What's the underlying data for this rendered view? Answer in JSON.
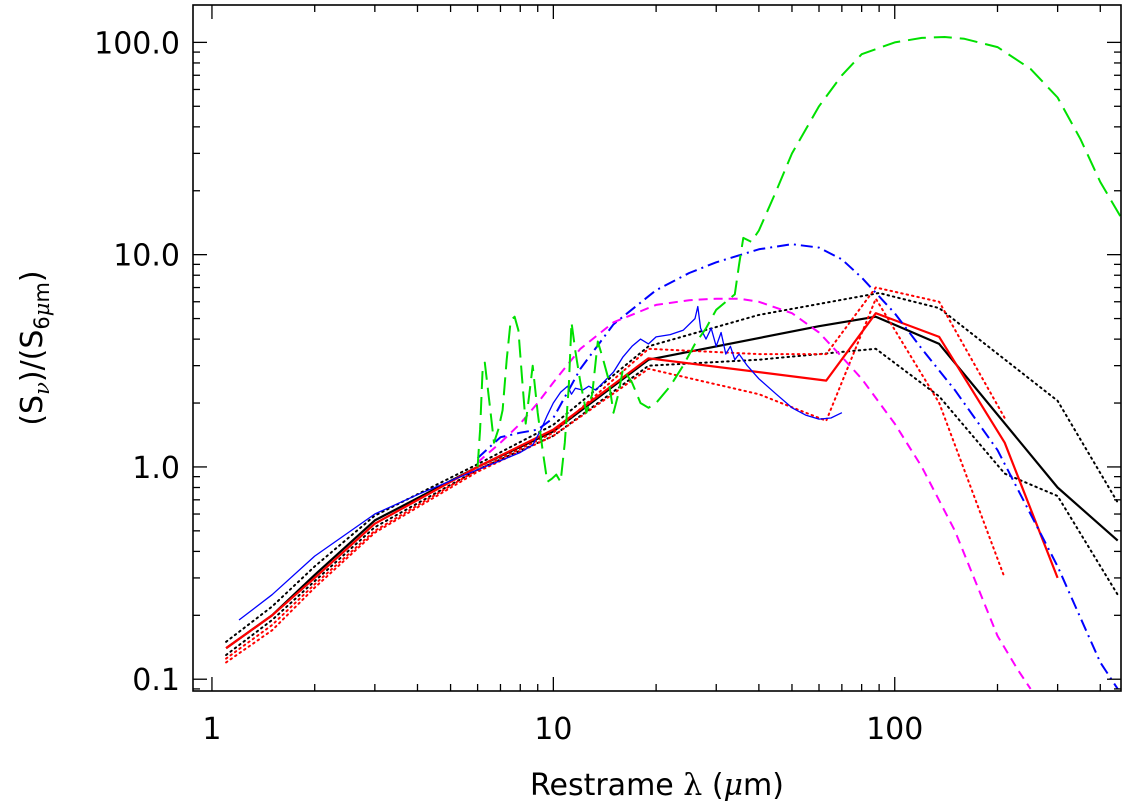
{
  "chart_data": {
    "type": "line",
    "title": "",
    "xlabel": "Restrame λ (μm)",
    "ylabel": "(S_ν)/(S_6μm)",
    "xlabel_parts": {
      "pre": "Restrame ",
      "greek": "λ",
      "post": " (",
      "mu": "μ",
      "unit": "m)"
    },
    "ylabel_parts": {
      "open": "(S",
      "sub1": "ν",
      "mid": ")/(S",
      "sub2a": "6",
      "sub2b": "μ",
      "sub2c": "m",
      "close": ")"
    },
    "xscale": "log",
    "yscale": "log",
    "xlim": [
      0.88,
      460
    ],
    "ylim": [
      0.088,
      150
    ],
    "x_tick_labels": [
      {
        "value": 1,
        "label": "1"
      },
      {
        "value": 10,
        "label": "10"
      },
      {
        "value": 100,
        "label": "100"
      }
    ],
    "y_tick_labels": [
      {
        "value": 0.1,
        "label": "0.1"
      },
      {
        "value": 1,
        "label": "1.0"
      },
      {
        "value": 10,
        "label": "10.0"
      },
      {
        "value": 100,
        "label": "100.0"
      }
    ],
    "grid": false,
    "legend": "none",
    "series": [
      {
        "color": "#000000",
        "style": "solid",
        "width": 2.2,
        "x": [
          1.1,
          1.5,
          2,
          3,
          6,
          10,
          19,
          60,
          88,
          135,
          300,
          450
        ],
        "y": [
          0.14,
          0.2,
          0.31,
          0.56,
          1.0,
          1.47,
          3.2,
          4.6,
          5.1,
          3.8,
          0.8,
          0.45
        ]
      },
      {
        "color": "#000000",
        "style": "dotted",
        "width": 2,
        "x": [
          1.1,
          1.5,
          2,
          3,
          6,
          10,
          19,
          40,
          90,
          135,
          300,
          450
        ],
        "y": [
          0.15,
          0.22,
          0.34,
          0.59,
          1.03,
          1.58,
          3.7,
          5.2,
          6.6,
          5.6,
          2.05,
          0.68
        ]
      },
      {
        "color": "#000000",
        "style": "dotted",
        "width": 2,
        "x": [
          1.1,
          1.5,
          2,
          3,
          6,
          10,
          19,
          40,
          88,
          135,
          210,
          300,
          450
        ],
        "y": [
          0.13,
          0.19,
          0.29,
          0.52,
          0.97,
          1.4,
          3.0,
          3.2,
          3.6,
          2.15,
          0.93,
          0.73,
          0.25
        ]
      },
      {
        "color": "#ff0000",
        "style": "solid",
        "width": 2.2,
        "x": [
          1.1,
          1.5,
          2,
          3,
          6,
          10,
          19,
          63,
          88,
          135,
          210,
          300
        ],
        "y": [
          0.14,
          0.2,
          0.3,
          0.54,
          1.0,
          1.5,
          3.25,
          2.55,
          5.3,
          4.1,
          1.3,
          0.3
        ]
      },
      {
        "color": "#ff0000",
        "style": "dotted",
        "width": 2,
        "x": [
          1.1,
          1.5,
          2,
          3,
          6,
          10,
          19,
          40,
          63,
          88,
          135,
          210
        ],
        "y": [
          0.125,
          0.18,
          0.28,
          0.5,
          0.97,
          1.45,
          3.6,
          3.4,
          3.4,
          7.0,
          6.0,
          1.7
        ]
      },
      {
        "color": "#ff0000",
        "style": "dotted",
        "width": 2,
        "x": [
          1.1,
          1.5,
          2,
          3,
          6,
          10,
          19,
          40,
          63,
          88,
          135,
          210
        ],
        "y": [
          0.12,
          0.17,
          0.27,
          0.49,
          0.95,
          1.4,
          2.9,
          2.2,
          1.65,
          6.2,
          2.0,
          0.3
        ]
      },
      {
        "color": "#0000ff",
        "style": "solid",
        "width": 1.3,
        "x": [
          1.2,
          1.5,
          2,
          3,
          4,
          5,
          6,
          7,
          8,
          8.7,
          9.2,
          9.6,
          10,
          10.5,
          11,
          11.3,
          11.6,
          12.2,
          12.7,
          13.3,
          14,
          15,
          16,
          17,
          18,
          19,
          20,
          22,
          24,
          26,
          26.5,
          27,
          28,
          29,
          30,
          31,
          32,
          33,
          34,
          35,
          37,
          40,
          45,
          50,
          55,
          60,
          65,
          70
        ],
        "y": [
          0.19,
          0.25,
          0.38,
          0.6,
          0.74,
          0.86,
          0.97,
          1.07,
          1.17,
          1.27,
          1.5,
          1.75,
          2.0,
          2.25,
          2.4,
          2.2,
          2.35,
          2.3,
          2.4,
          2.3,
          2.5,
          2.8,
          3.3,
          3.7,
          4.0,
          3.8,
          4.1,
          4.2,
          4.4,
          5.0,
          5.7,
          4.5,
          4.0,
          4.5,
          3.7,
          4.3,
          3.4,
          3.7,
          3.2,
          3.4,
          3.0,
          2.6,
          2.2,
          1.9,
          1.75,
          1.68,
          1.7,
          1.8
        ]
      },
      {
        "color": "#0000ff",
        "style": "dashdot",
        "width": 2,
        "x": [
          6,
          7,
          8,
          9,
          10,
          12,
          15,
          20,
          25,
          30,
          40,
          50,
          60,
          70,
          80,
          100,
          120,
          150,
          200,
          300,
          400,
          450
        ],
        "y": [
          1.1,
          1.38,
          1.45,
          1.5,
          1.7,
          2.9,
          4.7,
          6.8,
          8.2,
          9.2,
          10.6,
          11.2,
          10.8,
          9.5,
          7.8,
          5.3,
          3.6,
          2.3,
          1.2,
          0.34,
          0.12,
          0.09
        ]
      },
      {
        "color": "#ff00ff",
        "style": "dashed",
        "width": 2,
        "x": [
          6,
          7,
          8,
          9,
          10,
          12,
          15,
          20,
          25,
          30,
          35,
          40,
          50,
          60,
          70,
          80,
          100,
          120,
          150,
          200,
          230,
          250
        ],
        "y": [
          1.05,
          1.3,
          1.6,
          2.0,
          2.5,
          3.6,
          4.8,
          5.8,
          6.1,
          6.2,
          6.2,
          6.0,
          5.3,
          4.3,
          3.3,
          2.6,
          1.6,
          1.0,
          0.5,
          0.16,
          0.11,
          0.09
        ]
      },
      {
        "color": "#00e000",
        "style": "longdash",
        "width": 2,
        "x": [
          6,
          6.1,
          6.2,
          6.3,
          6.5,
          6.7,
          6.9,
          7.1,
          7.3,
          7.5,
          7.7,
          7.9,
          8.1,
          8.3,
          8.5,
          8.7,
          9.0,
          9.3,
          9.6,
          9.9,
          10.2,
          10.5,
          10.8,
          11.1,
          11.3,
          11.6,
          12.0,
          12.5,
          13.0,
          13.5,
          14.0,
          14.5,
          15.0,
          15.5,
          16,
          17,
          18,
          19,
          20,
          22,
          24,
          26,
          28,
          30,
          32,
          34,
          35,
          36,
          38,
          40,
          45,
          50,
          60,
          70,
          80,
          100,
          120,
          140,
          160,
          200,
          250,
          300,
          350,
          400,
          460
        ],
        "y": [
          1.0,
          1.5,
          2.8,
          3.1,
          2.0,
          1.3,
          1.5,
          1.85,
          3.2,
          4.9,
          5.1,
          4.4,
          2.6,
          1.6,
          2.2,
          3.0,
          1.8,
          1.2,
          0.85,
          0.88,
          0.92,
          0.85,
          1.3,
          2.4,
          4.8,
          3.5,
          2.5,
          1.8,
          2.2,
          3.9,
          3.2,
          2.6,
          1.8,
          2.2,
          2.9,
          2.5,
          2.0,
          1.9,
          2.0,
          2.4,
          3.0,
          3.8,
          4.5,
          5.5,
          6.0,
          6.5,
          9.0,
          12.0,
          11.5,
          13.0,
          20.0,
          30.0,
          50.0,
          70.0,
          88.0,
          100.0,
          105.0,
          106.0,
          104.0,
          95.0,
          75.0,
          55.0,
          35.0,
          22.0,
          15.0
        ]
      }
    ]
  }
}
